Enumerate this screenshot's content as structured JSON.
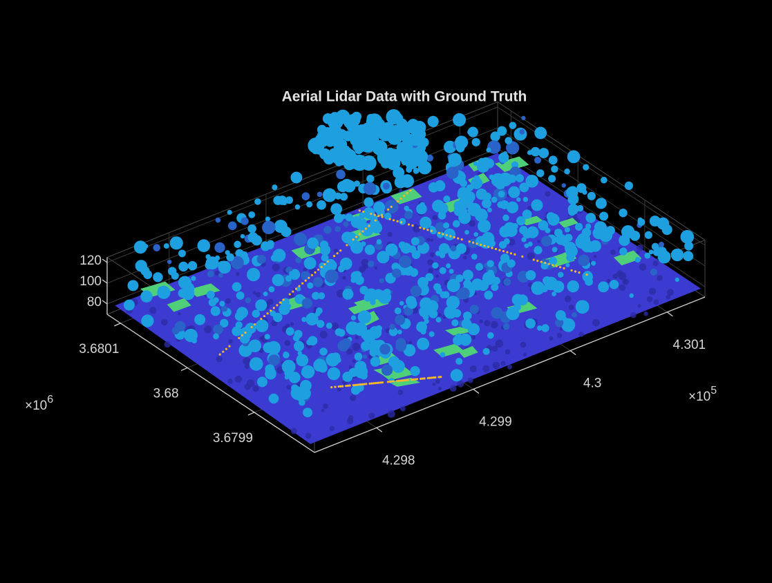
{
  "chart_data": {
    "type": "scatter3d",
    "title": "Aerial Lidar Data with Ground Truth",
    "xlim": [
      4.29736,
      4.30139
    ],
    "xticks": [
      4.298,
      4.299,
      4.3,
      4.301
    ],
    "x_exponent": {
      "base": "×10",
      "power": "5"
    },
    "ylim": [
      3.67981,
      3.68012
    ],
    "yticks": [
      3.6799,
      3.68,
      3.6801
    ],
    "y_exponent": {
      "base": "×10",
      "power": "6"
    },
    "zlim": [
      70,
      125
    ],
    "zticks": [
      80,
      100,
      120
    ],
    "grid": true
  }
}
